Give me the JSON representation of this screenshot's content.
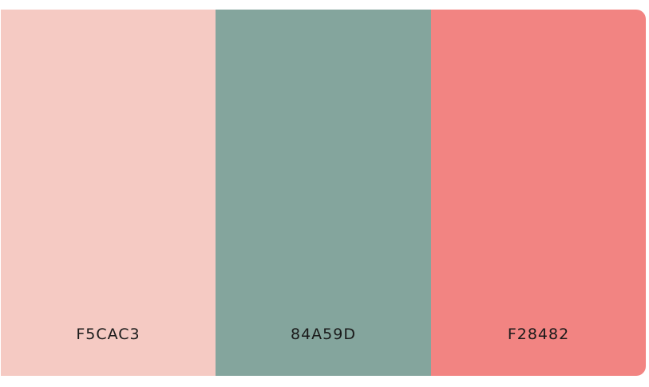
{
  "palette": {
    "swatches": [
      {
        "hex_label": "F5CAC3",
        "color": "#F5CAC3"
      },
      {
        "hex_label": "84A59D",
        "color": "#84A59D"
      },
      {
        "hex_label": "F28482",
        "color": "#F28482"
      }
    ]
  }
}
